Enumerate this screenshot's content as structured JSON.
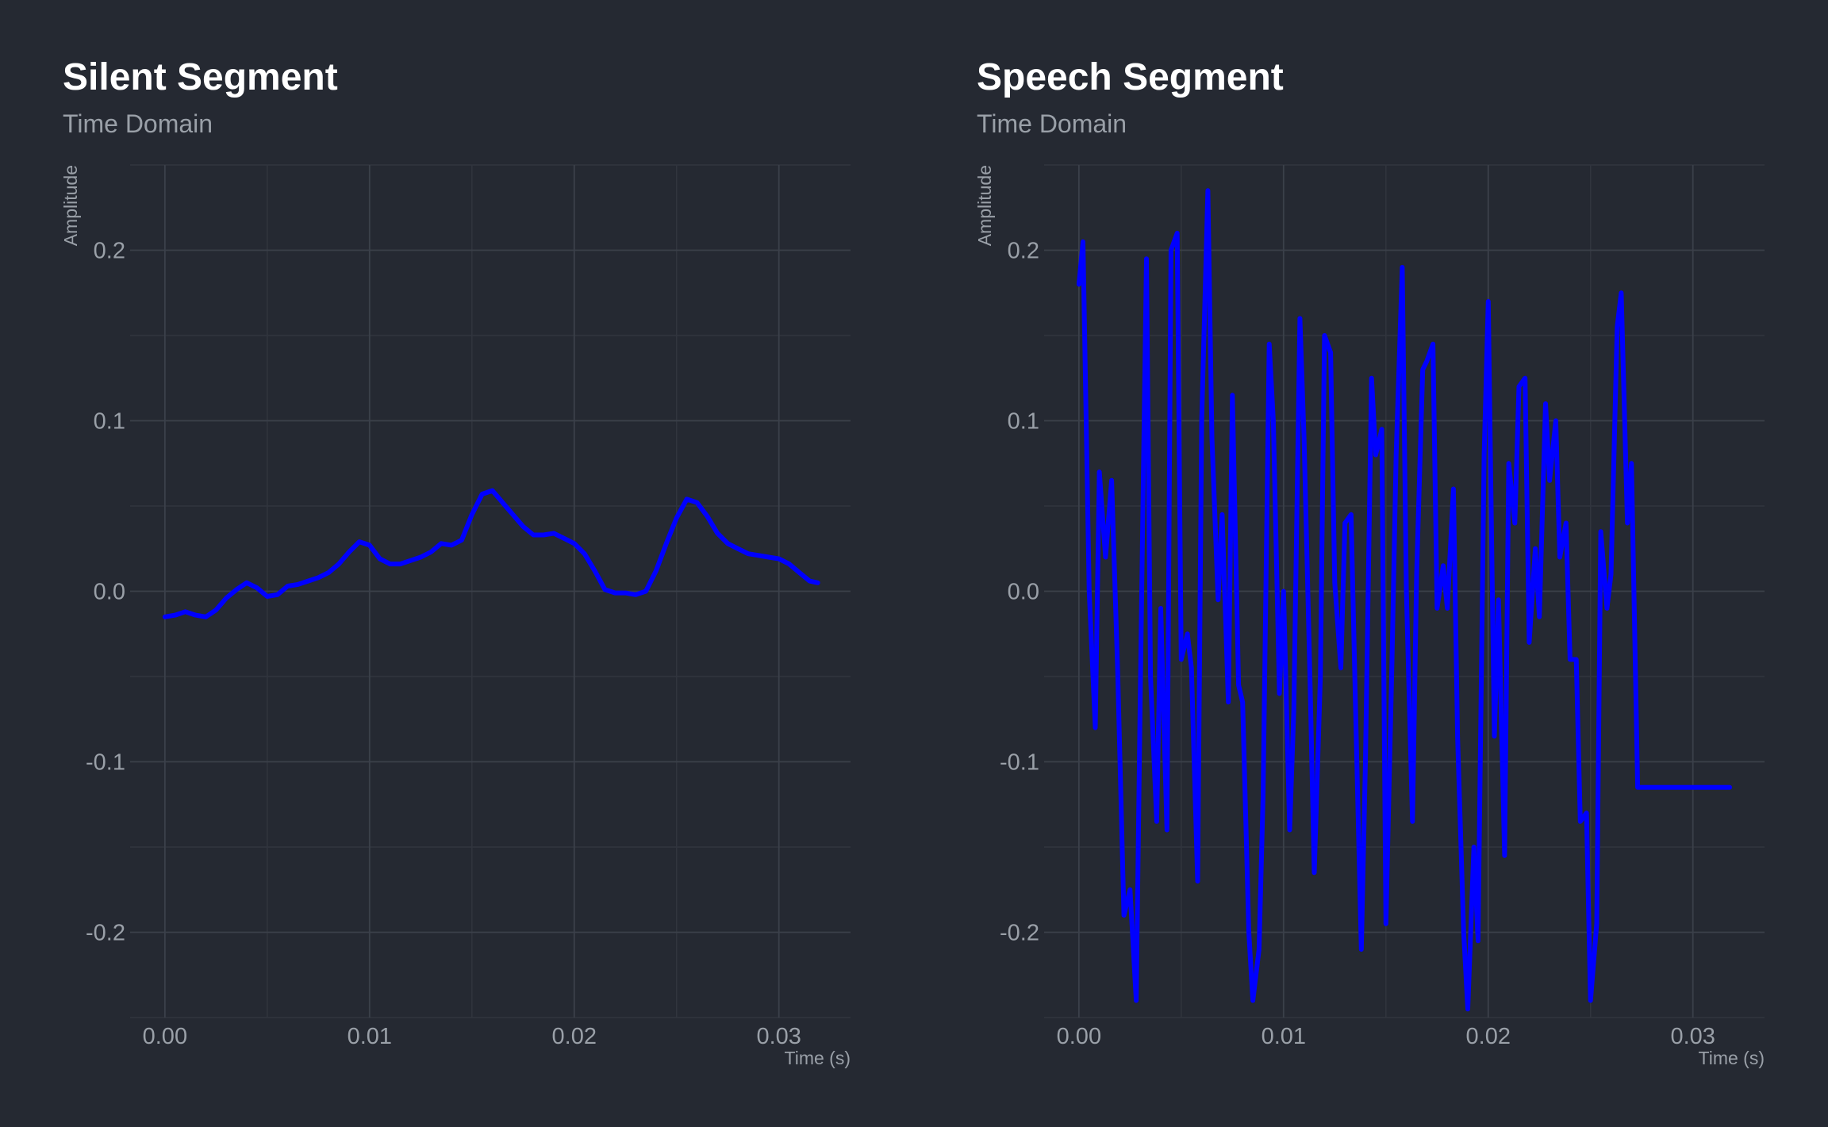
{
  "colors": {
    "background": "#252932",
    "grid_major": "#3b404a",
    "grid_minor": "#31353e",
    "line": "#0000ff",
    "title": "#ffffff",
    "muted_text": "#9aa0a8"
  },
  "chart_data": [
    {
      "type": "line",
      "title": "Silent Segment",
      "subtitle": "Time Domain",
      "xlabel": "Time (s)",
      "ylabel": "Amplitude",
      "xlim": [
        -0.0017,
        0.0335
      ],
      "ylim": [
        -0.25,
        0.25
      ],
      "xticks": [
        0,
        0.01,
        0.02,
        0.03
      ],
      "xtick_labels": [
        "0.00",
        "0.01",
        "0.02",
        "0.03"
      ],
      "yticks": [
        -0.2,
        -0.1,
        0,
        0.1,
        0.2
      ],
      "ytick_labels": [
        "-0.2",
        "-0.1",
        "0.0",
        "0.1",
        "0.2"
      ],
      "grid": true,
      "series": [
        {
          "x": [
            0,
            0.0005,
            0.001,
            0.0015,
            0.002,
            0.0025,
            0.003,
            0.0035,
            0.004,
            0.0045,
            0.005,
            0.0055,
            0.006,
            0.0065,
            0.007,
            0.0075,
            0.008,
            0.0085,
            0.009,
            0.0095,
            0.01,
            0.0105,
            0.011,
            0.0115,
            0.012,
            0.0125,
            0.013,
            0.0135,
            0.014,
            0.0145,
            0.015,
            0.0155,
            0.016,
            0.0165,
            0.017,
            0.0175,
            0.018,
            0.0185,
            0.019,
            0.0195,
            0.02,
            0.0205,
            0.021,
            0.0215,
            0.022,
            0.0225,
            0.023,
            0.0235,
            0.024,
            0.0245,
            0.025,
            0.0255,
            0.026,
            0.0265,
            0.027,
            0.0275,
            0.028,
            0.0285,
            0.029,
            0.0295,
            0.03,
            0.0305,
            0.031,
            0.0315,
            0.0319
          ],
          "y": [
            -0.015,
            -0.014,
            -0.012,
            -0.014,
            -0.015,
            -0.011,
            -0.004,
            0.001,
            0.005,
            0.002,
            -0.003,
            -0.002,
            0.003,
            0.004,
            0.006,
            0.008,
            0.011,
            0.016,
            0.023,
            0.029,
            0.027,
            0.019,
            0.016,
            0.016,
            0.018,
            0.02,
            0.023,
            0.028,
            0.027,
            0.03,
            0.045,
            0.057,
            0.059,
            0.052,
            0.045,
            0.038,
            0.033,
            0.033,
            0.034,
            0.031,
            0.028,
            0.022,
            0.012,
            0.001,
            -0.001,
            -0.001,
            -0.002,
            0.0,
            0.012,
            0.028,
            0.043,
            0.054,
            0.052,
            0.044,
            0.034,
            0.028,
            0.025,
            0.022,
            0.021,
            0.02,
            0.019,
            0.016,
            0.011,
            0.006,
            0.005
          ]
        }
      ]
    },
    {
      "type": "line",
      "title": "Speech Segment",
      "subtitle": "Time Domain",
      "xlabel": "Time (s)",
      "ylabel": "Amplitude",
      "xlim": [
        -0.0017,
        0.0335
      ],
      "ylim": [
        -0.25,
        0.25
      ],
      "xticks": [
        0,
        0.01,
        0.02,
        0.03
      ],
      "xtick_labels": [
        "0.00",
        "0.01",
        "0.02",
        "0.03"
      ],
      "yticks": [
        -0.2,
        -0.1,
        0,
        0.1,
        0.2
      ],
      "ytick_labels": [
        "-0.2",
        "-0.1",
        "0.0",
        "0.1",
        "0.2"
      ],
      "grid": true,
      "series": [
        {
          "x": [
            0,
            0.0002,
            0.0005,
            0.0008,
            0.001,
            0.0013,
            0.0016,
            0.0019,
            0.0022,
            0.0025,
            0.0028,
            0.003,
            0.0033,
            0.0035,
            0.0038,
            0.004,
            0.0043,
            0.0045,
            0.0048,
            0.005,
            0.0053,
            0.0055,
            0.0058,
            0.006,
            0.0063,
            0.0065,
            0.0068,
            0.007,
            0.0073,
            0.0075,
            0.0078,
            0.008,
            0.0083,
            0.0085,
            0.0088,
            0.009,
            0.0093,
            0.0095,
            0.0098,
            0.01,
            0.0103,
            0.0105,
            0.0108,
            0.011,
            0.0113,
            0.0115,
            0.0118,
            0.012,
            0.0123,
            0.0125,
            0.0128,
            0.013,
            0.0133,
            0.0135,
            0.0138,
            0.014,
            0.0143,
            0.0145,
            0.0148,
            0.015,
            0.0153,
            0.0155,
            0.0158,
            0.016,
            0.0163,
            0.0165,
            0.0168,
            0.017,
            0.0173,
            0.0175,
            0.0178,
            0.018,
            0.0183,
            0.0185,
            0.0188,
            0.019,
            0.0193,
            0.0195,
            0.0198,
            0.02,
            0.0203,
            0.0205,
            0.0208,
            0.021,
            0.0213,
            0.0215,
            0.0218,
            0.022,
            0.0223,
            0.0225,
            0.0228,
            0.023,
            0.0233,
            0.0235,
            0.0238,
            0.024,
            0.0243,
            0.0245,
            0.0248,
            0.025,
            0.0253,
            0.0255,
            0.0258,
            0.026,
            0.0263,
            0.0265,
            0.0268,
            0.027,
            0.0273,
            0.0275,
            0.0278,
            0.028,
            0.0283,
            0.0285,
            0.0288,
            0.029,
            0.0293,
            0.0295,
            0.0298,
            0.03,
            0.0303,
            0.0305,
            0.0308,
            0.031,
            0.0313,
            0.0315,
            0.0318
          ],
          "y": [
            0.18,
            0.205,
            0.0,
            -0.08,
            0.07,
            0.02,
            0.065,
            -0.05,
            -0.19,
            -0.175,
            -0.24,
            -0.06,
            0.195,
            -0.05,
            -0.135,
            -0.01,
            -0.14,
            0.2,
            0.21,
            -0.04,
            -0.025,
            -0.045,
            -0.17,
            0.1,
            0.235,
            0.09,
            -0.005,
            0.045,
            -0.065,
            0.115,
            -0.055,
            -0.065,
            -0.2,
            -0.24,
            -0.21,
            -0.12,
            0.145,
            0.1,
            -0.06,
            0.0,
            -0.14,
            -0.07,
            0.16,
            0.09,
            -0.055,
            -0.165,
            -0.05,
            0.15,
            0.14,
            0.005,
            -0.045,
            0.04,
            0.045,
            -0.06,
            -0.21,
            -0.1,
            0.125,
            0.08,
            0.095,
            -0.195,
            -0.04,
            0.08,
            0.19,
            0.0,
            -0.135,
            0.01,
            0.13,
            0.135,
            0.145,
            -0.01,
            0.015,
            -0.01,
            0.06,
            -0.085,
            -0.2,
            -0.245,
            -0.15,
            -0.205,
            0.08,
            0.17,
            -0.085,
            -0.005,
            -0.155,
            0.075,
            0.04,
            0.12,
            0.125,
            -0.03,
            0.025,
            -0.015,
            0.11,
            0.065,
            0.1,
            0.02,
            0.04,
            -0.04,
            -0.04,
            -0.135,
            -0.13,
            -0.24,
            -0.195,
            0.035,
            -0.01,
            0.01,
            0.155,
            0.175,
            0.04,
            0.075,
            -0.115,
            -0.115,
            -0.115,
            -0.115,
            -0.115,
            -0.115,
            -0.115,
            -0.115,
            -0.115,
            -0.115,
            -0.115,
            -0.115,
            -0.115,
            -0.115,
            -0.115,
            -0.115,
            -0.115,
            -0.115,
            -0.115
          ]
        }
      ]
    }
  ]
}
